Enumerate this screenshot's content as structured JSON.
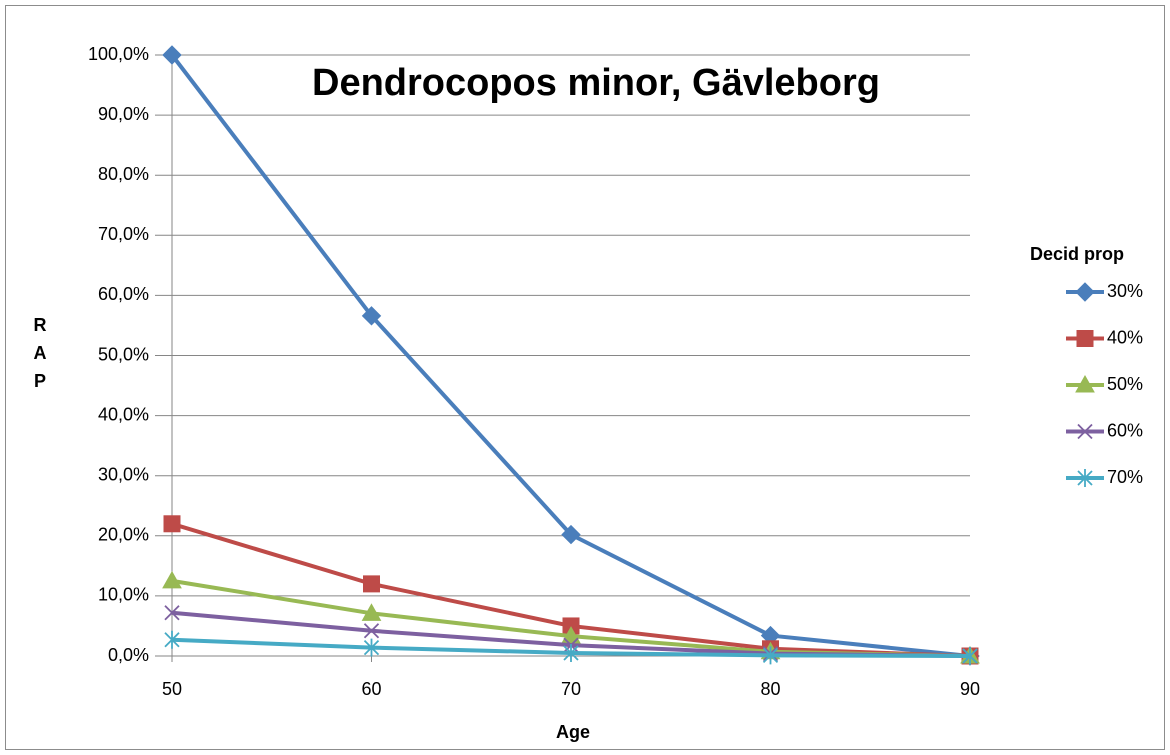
{
  "chart_data": {
    "type": "line",
    "title": "Dendrocopos minor, Gävleborg",
    "x_label": "Age",
    "y_label": "RAP",
    "x": [
      50,
      60,
      70,
      80,
      90
    ],
    "xlim": [
      50,
      90
    ],
    "xticks": [
      50,
      60,
      70,
      80,
      90
    ],
    "ylim": [
      0,
      100
    ],
    "yticks": [
      {
        "value": 0,
        "label": "0,0%"
      },
      {
        "value": 10,
        "label": "10,0%"
      },
      {
        "value": 20,
        "label": "20,0%"
      },
      {
        "value": 30,
        "label": "30,0%"
      },
      {
        "value": 40,
        "label": "40,0%"
      },
      {
        "value": 50,
        "label": "50,0%"
      },
      {
        "value": 60,
        "label": "60,0%"
      },
      {
        "value": 70,
        "label": "70,0%"
      },
      {
        "value": 80,
        "label": "80,0%"
      },
      {
        "value": 90,
        "label": "90,0%"
      },
      {
        "value": 100,
        "label": "100,0%"
      }
    ],
    "grid": true,
    "legend": "right",
    "legend_title": "Decid prop",
    "series": [
      {
        "name": "30%",
        "color": "#4a7ebb",
        "marker": "diamond",
        "values": [
          100,
          56.6,
          20.2,
          3.4,
          0
        ]
      },
      {
        "name": "40%",
        "color": "#be4b48",
        "marker": "square",
        "values": [
          22,
          12,
          5,
          1.2,
          0
        ]
      },
      {
        "name": "50%",
        "color": "#98b954",
        "marker": "triangle",
        "values": [
          12.5,
          7.1,
          3.3,
          0.7,
          0
        ]
      },
      {
        "name": "60%",
        "color": "#7d60a0",
        "marker": "x",
        "values": [
          7.2,
          4.2,
          1.8,
          0.4,
          0
        ]
      },
      {
        "name": "70%",
        "color": "#46aac5",
        "marker": "asterisk",
        "values": [
          2.7,
          1.4,
          0.5,
          0.1,
          0
        ]
      }
    ]
  }
}
